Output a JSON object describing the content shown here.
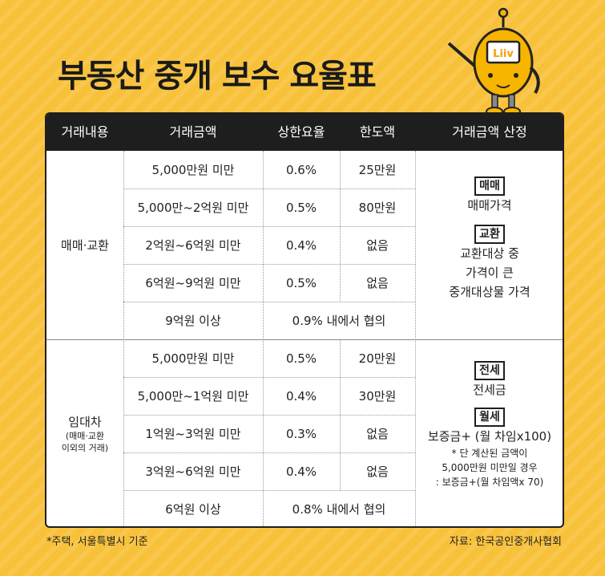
{
  "title": "부동산 중개 보수 요율표",
  "mascot": {
    "badge_text": "Liiv"
  },
  "headers": [
    "거래내용",
    "거래금액",
    "상한요율",
    "한도액",
    "거래금액 산정"
  ],
  "sections": [
    {
      "label": "매매·교환",
      "sublabel": "",
      "rows": [
        {
          "amount": "5,000만원 미만",
          "rate": "0.6%",
          "limit": "25만원",
          "merged": ""
        },
        {
          "amount": "5,000만~2억원 미만",
          "rate": "0.5%",
          "limit": "80만원",
          "merged": ""
        },
        {
          "amount": "2억원~6억원 미만",
          "rate": "0.4%",
          "limit": "없음",
          "merged": ""
        },
        {
          "amount": "6억원~9억원 미만",
          "rate": "0.5%",
          "limit": "없음",
          "merged": ""
        },
        {
          "amount": "9억원 이상",
          "rate": "",
          "limit": "",
          "merged": "0.9% 내에서 협의"
        }
      ],
      "calc": {
        "tag1": "매매",
        "line1": "매매가격",
        "tag2": "교환",
        "lines2": [
          "교환대상 중",
          "가격이 큰",
          "중개대상물 가격"
        ]
      }
    },
    {
      "label": "임대차",
      "sublabel_lines": [
        "(매매·교환",
        "이외의 거래)"
      ],
      "rows": [
        {
          "amount": "5,000만원 미만",
          "rate": "0.5%",
          "limit": "20만원",
          "merged": ""
        },
        {
          "amount": "5,000만~1억원 미만",
          "rate": "0.4%",
          "limit": "30만원",
          "merged": ""
        },
        {
          "amount": "1억원~3억원 미만",
          "rate": "0.3%",
          "limit": "없음",
          "merged": ""
        },
        {
          "amount": "3억원~6억원 미만",
          "rate": "0.4%",
          "limit": "없음",
          "merged": ""
        },
        {
          "amount": "6억원 이상",
          "rate": "",
          "limit": "",
          "merged": "0.8% 내에서 협의"
        }
      ],
      "calc": {
        "tag1": "전세",
        "line1": "전세금",
        "tag2": "월세",
        "line2": "보증금+ (월 차임x100)",
        "notes": [
          "* 단 계산된 금액이",
          "5,000만원 미만일 경우",
          ": 보증금+(월 차임액x 70)"
        ]
      }
    }
  ],
  "footer": {
    "left": "*주택, 서울특별시 기준",
    "right": "자료: 한국공인중개사협회"
  }
}
